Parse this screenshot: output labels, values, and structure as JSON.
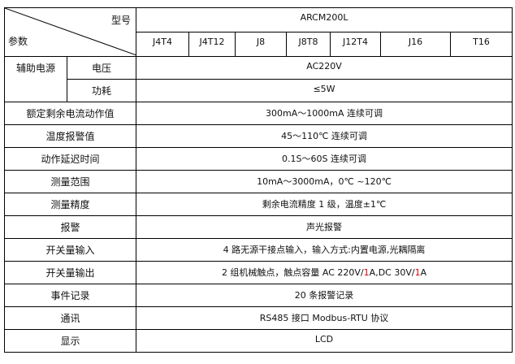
{
  "header": {
    "model_label": "型号",
    "param_label": "参数",
    "series": "ARCM200L",
    "models": [
      "J4T4",
      "J4T12",
      "J8",
      "J8T8",
      "J12T4",
      "J16",
      "T16"
    ]
  },
  "aux_power": {
    "label": "辅助电源",
    "voltage_label": "电压",
    "voltage_value": "AC220V",
    "power_label": "功耗",
    "power_value": "≤5W"
  },
  "rows": [
    {
      "label": "额定剩余电流动作值",
      "value": "300mA～1000mA 连续可调"
    },
    {
      "label": "温度报警值",
      "value": "45～110℃  连续可调"
    },
    {
      "label": "动作延迟时间",
      "value": "0.1S～60S 连续可调"
    },
    {
      "label": "测量范围",
      "value": "10mA～3000mA，0℃  ~120℃"
    },
    {
      "label": "测量精度",
      "value": "剩余电流精度 1 级，温度±1℃"
    },
    {
      "label": "报警",
      "value": "声光报警"
    },
    {
      "label": "开关量输入",
      "value": "4 路无源干接点输入，输入方式:内置电源,光耦隔离"
    },
    {
      "label": "开关量输出",
      "value_parts": [
        "2 组机械触点，触点容量 AC 220V/",
        "1",
        "A,DC 30V/",
        "1",
        "A"
      ]
    },
    {
      "label": "事件记录",
      "value": "20 条报警记录"
    },
    {
      "label": "通讯",
      "value": "RS485 接口  Modbus-RTU 协议"
    },
    {
      "label": "显示",
      "value": "LCD"
    }
  ],
  "colors": {
    "highlight": "#e00000"
  }
}
